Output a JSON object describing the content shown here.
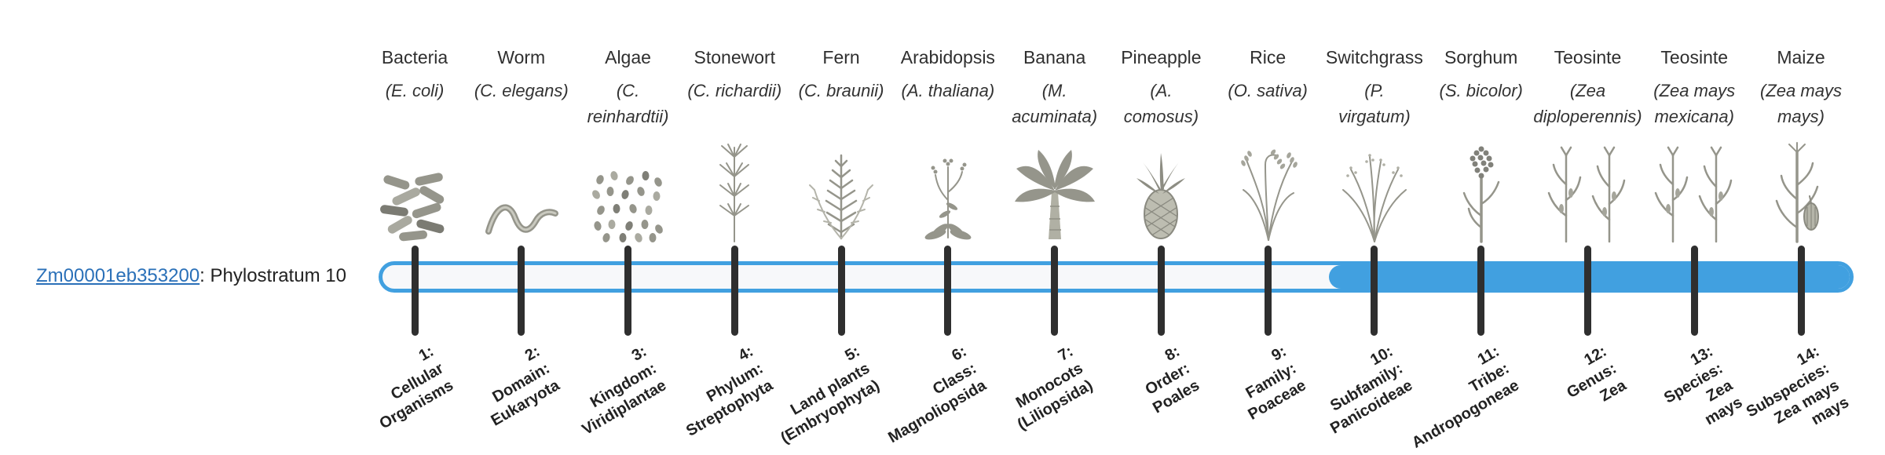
{
  "figure": {
    "gene": {
      "link_text": "Zm00001eb353200",
      "suffix": ": Phylostratum 10"
    },
    "track": {
      "phylostratum": 10,
      "total_phylostrata": 14
    },
    "colors": {
      "accent_blue": "#41a0e0",
      "link_blue": "#2a70b8",
      "tick_dark": "#2f2f2f",
      "track_background": "#f7f8fa",
      "illustration_gray": "#95958b"
    },
    "strata": [
      {
        "index": 1,
        "organism": "Bacteria",
        "latin_lines": [
          "(E. coli)"
        ],
        "icon": "bacteria-icon",
        "tick_label_lines": [
          "1:",
          "Cellular",
          "Organisms"
        ]
      },
      {
        "index": 2,
        "organism": "Worm",
        "latin_lines": [
          "(C. elegans)"
        ],
        "icon": "worm-icon",
        "tick_label_lines": [
          "2:",
          "Domain:",
          "Eukaryota"
        ]
      },
      {
        "index": 3,
        "organism": "Algae",
        "latin_lines": [
          "(C.",
          "reinhardtii)"
        ],
        "icon": "algae-icon",
        "tick_label_lines": [
          "3:",
          "Kingdom:",
          "Viridiplantae"
        ]
      },
      {
        "index": 4,
        "organism": "Stonewort",
        "latin_lines": [
          "(C. richardii)"
        ],
        "icon": "stonewort-icon",
        "tick_label_lines": [
          "4:",
          "Phylum:",
          "Streptophyta"
        ]
      },
      {
        "index": 5,
        "organism": "Fern",
        "latin_lines": [
          "(C. braunii)"
        ],
        "icon": "fern-icon",
        "tick_label_lines": [
          "5:",
          "Land plants",
          "(Embryophyta)"
        ]
      },
      {
        "index": 6,
        "organism": "Arabidopsis",
        "latin_lines": [
          "(A. thaliana)"
        ],
        "icon": "arabidopsis-icon",
        "tick_label_lines": [
          "6:",
          "Class:",
          "Magnoliopsida"
        ]
      },
      {
        "index": 7,
        "organism": "Banana",
        "latin_lines": [
          "(M.",
          "acuminata)"
        ],
        "icon": "banana-icon",
        "tick_label_lines": [
          "7:",
          "Monocots",
          "(Liliopsida)"
        ]
      },
      {
        "index": 8,
        "organism": "Pineapple",
        "latin_lines": [
          "(A.",
          "comosus)"
        ],
        "icon": "pineapple-icon",
        "tick_label_lines": [
          "8:",
          "Order:",
          "Poales"
        ]
      },
      {
        "index": 9,
        "organism": "Rice",
        "latin_lines": [
          "(O. sativa)"
        ],
        "icon": "rice-icon",
        "tick_label_lines": [
          "9:",
          "Family:",
          "Poaceae"
        ]
      },
      {
        "index": 10,
        "organism": "Switchgrass",
        "latin_lines": [
          "(P.",
          "virgatum)"
        ],
        "icon": "switchgrass-icon",
        "tick_label_lines": [
          "10:",
          "Subfamily:",
          "Panicoideae"
        ]
      },
      {
        "index": 11,
        "organism": "Sorghum",
        "latin_lines": [
          "(S. bicolor)"
        ],
        "icon": "sorghum-icon",
        "tick_label_lines": [
          "11:",
          "Tribe:",
          "Andropogoneae"
        ]
      },
      {
        "index": 12,
        "organism": "Teosinte",
        "latin_lines": [
          "(Zea",
          "diploperennis)"
        ],
        "icon": "teosinte-icon",
        "tick_label_lines": [
          "12:",
          "Genus:",
          "Zea"
        ]
      },
      {
        "index": 13,
        "organism": "Teosinte",
        "latin_lines": [
          "(Zea mays",
          "mexicana)"
        ],
        "icon": "teosinte-icon",
        "tick_label_lines": [
          "13:",
          "Species:",
          "Zea",
          "mays"
        ]
      },
      {
        "index": 14,
        "organism": "Maize",
        "latin_lines": [
          "(Zea mays",
          "mays)"
        ],
        "icon": "maize-icon",
        "tick_label_lines": [
          "14:",
          "Subspecies:",
          "Zea mays",
          "mays"
        ]
      }
    ]
  }
}
